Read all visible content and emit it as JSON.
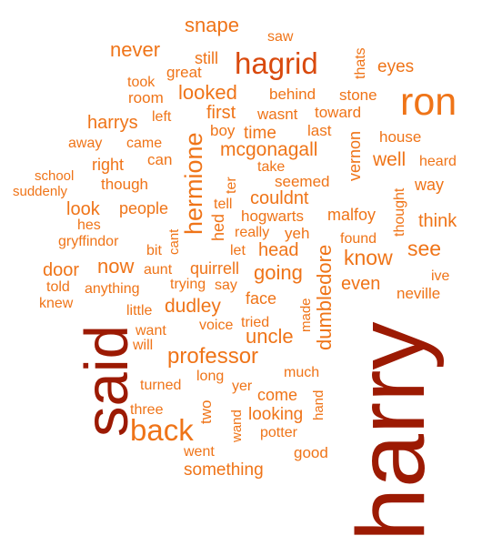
{
  "colors": {
    "dark": "#9c1a03",
    "mid": "#d94a0e",
    "light": "#ef7418"
  },
  "words": [
    "harry",
    "said",
    "ron",
    "hagrid",
    "hermione",
    "professor",
    "back",
    "looked",
    "snape",
    "never",
    "saw",
    "thats",
    "eyes",
    "still",
    "took",
    "great",
    "room",
    "behind",
    "stone",
    "harrys",
    "left",
    "first",
    "wasnt",
    "toward",
    "boy",
    "last",
    "vernon",
    "house",
    "away",
    "came",
    "time",
    "mcgonagall",
    "school",
    "right",
    "can",
    "take",
    "well",
    "heard",
    "suddenly",
    "though",
    "seemed",
    "way",
    "look",
    "people",
    "ter",
    "couldnt",
    "malfoy",
    "thought",
    "hes",
    "tell",
    "hogwarts",
    "think",
    "gryffindor",
    "hed",
    "really",
    "yeh",
    "bit",
    "cant",
    "let",
    "head",
    "found",
    "see",
    "know",
    "door",
    "now",
    "aunt",
    "going",
    "told",
    "quirrell",
    "dumbledore",
    "ive",
    "anything",
    "trying",
    "say",
    "even",
    "knew",
    "face",
    "made",
    "neville",
    "little",
    "dudley",
    "want",
    "voice",
    "tried",
    "will",
    "uncle",
    "much",
    "turned",
    "long",
    "yer",
    "come",
    "two",
    "hand",
    "three",
    "looking",
    "wand",
    "potter",
    "went",
    "good",
    "something"
  ]
}
